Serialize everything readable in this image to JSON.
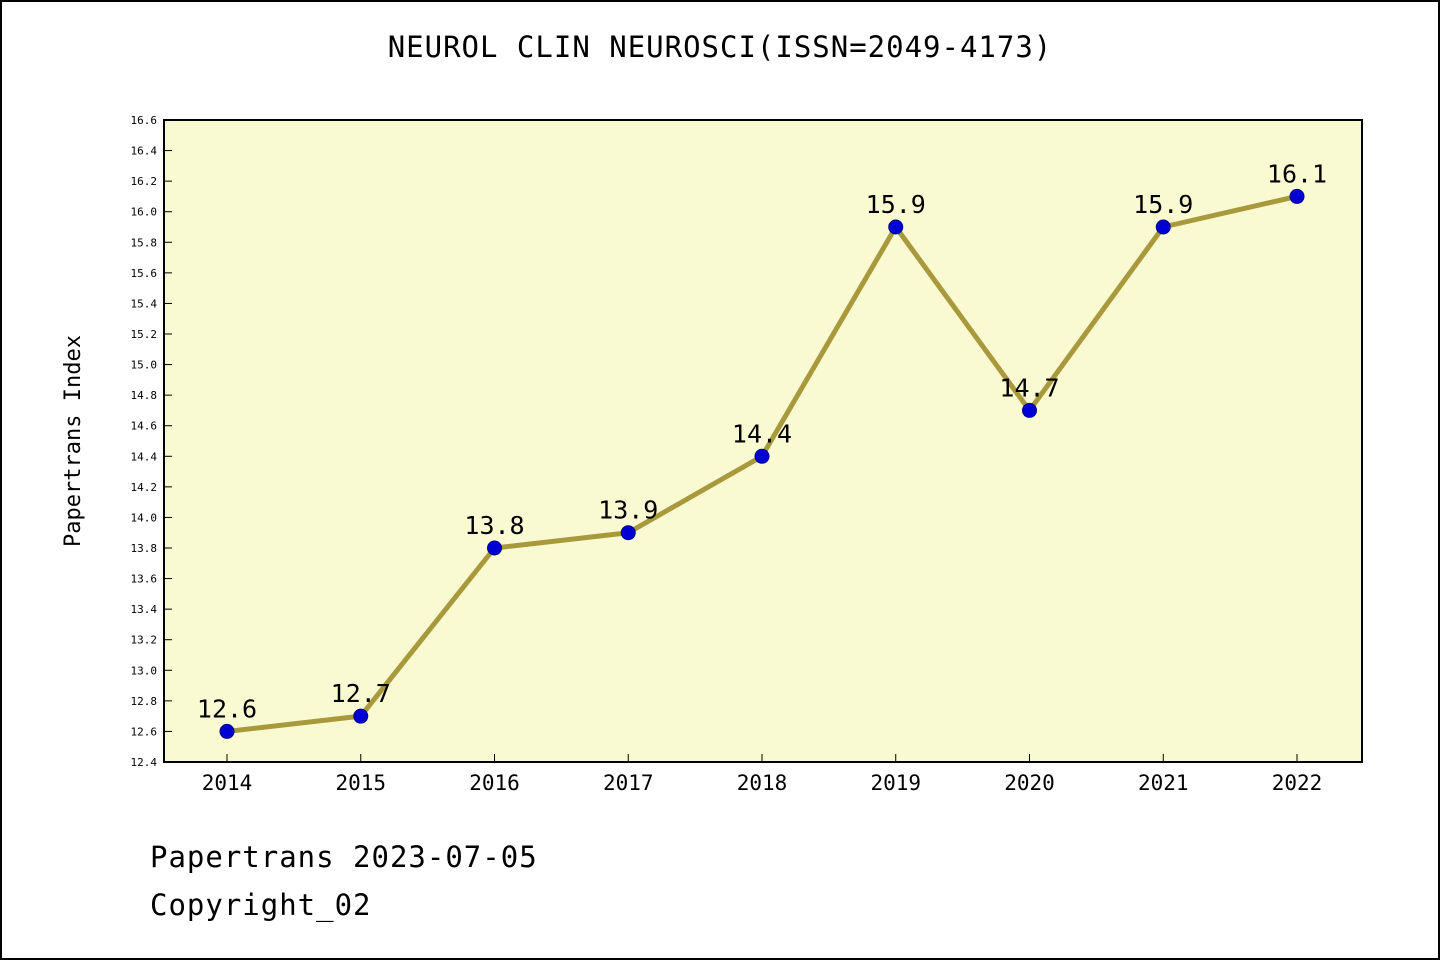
{
  "page": {
    "title": "NEUROL CLIN NEUROSCI(ISSN=2049-4173)",
    "footer_line1": "Papertrans 2023-07-05",
    "footer_line2": "Copyright_02"
  },
  "chart_data": {
    "type": "line",
    "title": "NEUROL CLIN NEUROSCI(ISSN=2049-4173)",
    "categories": [
      "2014",
      "2015",
      "2016",
      "2017",
      "2018",
      "2019",
      "2020",
      "2021",
      "2022"
    ],
    "values": [
      12.6,
      12.7,
      13.8,
      13.9,
      14.4,
      15.9,
      14.7,
      15.9,
      16.1
    ],
    "point_labels": [
      "12.6",
      "12.7",
      "13.8",
      "13.9",
      "14.4",
      "15.9",
      "14.7",
      "15.9",
      "16.1"
    ],
    "xlabel": "",
    "ylabel": "Papertrans Index",
    "ylim": [
      12.4,
      16.6
    ],
    "ytick_step": 0.2,
    "grid": false,
    "legend_position": "none",
    "colors": {
      "line": "#A89A3C",
      "marker_fill": "#0000D4",
      "marker_edge": "#00008B",
      "plot_background": "#FAFAD2",
      "page_background": "#FFFFFF",
      "axis": "#000000"
    }
  }
}
